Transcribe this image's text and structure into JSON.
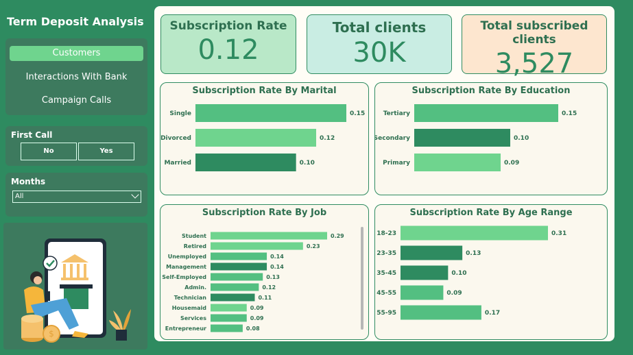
{
  "sidebar": {
    "title": "Term Deposit Analysis",
    "nav": [
      "Customers",
      "Interactions With Bank",
      "Campaign Calls"
    ],
    "active_nav": "Customers",
    "first_call": {
      "label": "First Call",
      "options": [
        "No",
        "Yes"
      ]
    },
    "months": {
      "label": "Months",
      "value": "All"
    }
  },
  "kpis": [
    {
      "title": "Subscription Rate",
      "value": "0.12",
      "bg": "#b9e8c8"
    },
    {
      "title": "Total clients",
      "value": "30K",
      "bg": "#c9ede3"
    },
    {
      "title": "Total subscribed clients",
      "value": "3,527",
      "bg": "#fde6cf"
    }
  ],
  "colors": {
    "light": "#6fd48e",
    "mid": "#53bf81",
    "dark": "#2e8b60"
  },
  "chart_data": [
    {
      "type": "bar",
      "orientation": "horizontal",
      "title": "Subscription Rate By Marital",
      "categories": [
        "Single",
        "Divorced",
        "Married"
      ],
      "values": [
        0.15,
        0.12,
        0.1
      ],
      "labels": [
        "0.15",
        "0.12",
        "0.10"
      ],
      "shades": [
        "mid",
        "light",
        "dark"
      ],
      "max": 0.15
    },
    {
      "type": "bar",
      "orientation": "horizontal",
      "title": "Subscription Rate By Education",
      "categories": [
        "Tertiary",
        "Secondary",
        "Primary"
      ],
      "values": [
        0.15,
        0.1,
        0.09
      ],
      "labels": [
        "0.15",
        "0.10",
        "0.09"
      ],
      "shades": [
        "mid",
        "dark",
        "light"
      ],
      "max": 0.15
    },
    {
      "type": "bar",
      "orientation": "horizontal",
      "title": "Subscription Rate By Job",
      "categories": [
        "Student",
        "Retired",
        "Unemployed",
        "Management",
        "Self-Employed",
        "Admin.",
        "Technician",
        "Housemaid",
        "Services",
        "Entrepreneur"
      ],
      "values": [
        0.29,
        0.23,
        0.14,
        0.14,
        0.13,
        0.12,
        0.11,
        0.09,
        0.09,
        0.08
      ],
      "labels": [
        "0.29",
        "0.23",
        "0.14",
        "0.14",
        "0.13",
        "0.12",
        "0.11",
        "0.09",
        "0.09",
        "0.08"
      ],
      "shades": [
        "light",
        "light",
        "mid",
        "dark",
        "mid",
        "mid",
        "dark",
        "light",
        "mid",
        "mid"
      ],
      "max": 0.29
    },
    {
      "type": "bar",
      "orientation": "horizontal",
      "title": "Subscription Rate By Age Range",
      "categories": [
        "18-23",
        "23-35",
        "35-45",
        "45-55",
        "55-95"
      ],
      "values": [
        0.31,
        0.13,
        0.1,
        0.09,
        0.17
      ],
      "labels": [
        "0.31",
        "0.13",
        "0.10",
        "0.09",
        "0.17"
      ],
      "shades": [
        "light",
        "dark",
        "dark",
        "mid",
        "mid"
      ],
      "max": 0.31
    }
  ]
}
